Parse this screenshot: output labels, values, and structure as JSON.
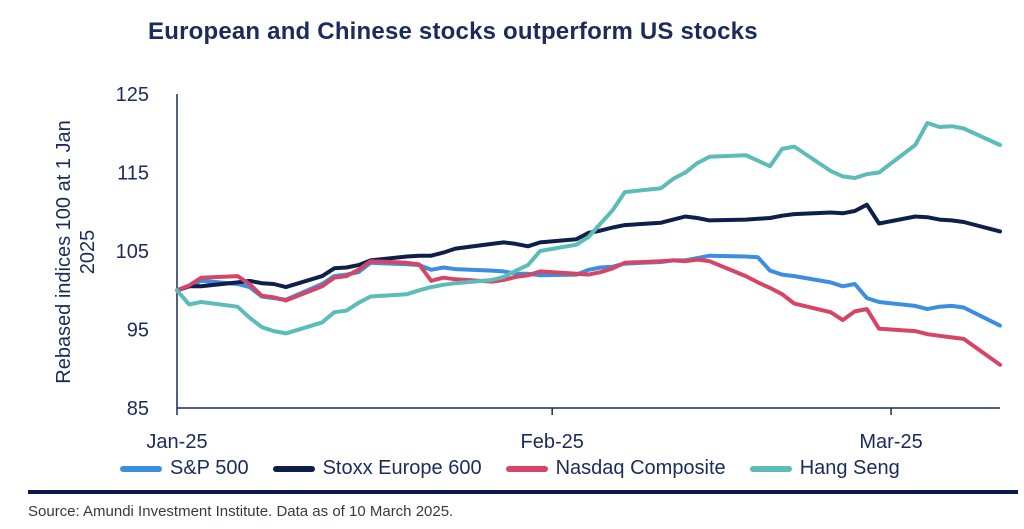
{
  "chart_data": {
    "type": "line",
    "title": "European and Chinese stocks outperform US stocks",
    "ylabel": "Rebased indices 100 at 1 Jan 2025",
    "ylabel_lines": [
      "Rebased indices 100 at 1 Jan",
      "2025"
    ],
    "ylim": [
      85,
      125
    ],
    "yticks": [
      125,
      115,
      105,
      95,
      85
    ],
    "xticks": [
      {
        "label": "Jan-25",
        "date": "2025-01-01"
      },
      {
        "label": "Feb-25",
        "date": "2025-02-01"
      },
      {
        "label": "Mar-25",
        "date": "2025-03-01"
      }
    ],
    "xlim": [
      "2025-01-01",
      "2025-03-10"
    ],
    "grid": false,
    "legend_position": "bottom",
    "dates": [
      "2025-01-01",
      "2025-01-02",
      "2025-01-03",
      "2025-01-06",
      "2025-01-07",
      "2025-01-08",
      "2025-01-09",
      "2025-01-10",
      "2025-01-13",
      "2025-01-14",
      "2025-01-15",
      "2025-01-16",
      "2025-01-17",
      "2025-01-20",
      "2025-01-21",
      "2025-01-22",
      "2025-01-23",
      "2025-01-24",
      "2025-01-27",
      "2025-01-28",
      "2025-01-29",
      "2025-01-30",
      "2025-01-31",
      "2025-02-03",
      "2025-02-04",
      "2025-02-05",
      "2025-02-06",
      "2025-02-07",
      "2025-02-10",
      "2025-02-11",
      "2025-02-12",
      "2025-02-13",
      "2025-02-14",
      "2025-02-17",
      "2025-02-18",
      "2025-02-19",
      "2025-02-20",
      "2025-02-21",
      "2025-02-24",
      "2025-02-25",
      "2025-02-26",
      "2025-02-27",
      "2025-02-28",
      "2025-03-03",
      "2025-03-04",
      "2025-03-05",
      "2025-03-06",
      "2025-03-07",
      "2025-03-10"
    ],
    "series": [
      {
        "name": "S&P 500",
        "color": "#3b8ee0",
        "values": [
          100,
          100.5,
          101.2,
          100.8,
          100.4,
          99.2,
          99.0,
          98.8,
          100.8,
          101.8,
          102.0,
          102.3,
          103.5,
          103.3,
          103.2,
          102.6,
          102.9,
          102.7,
          102.5,
          102.4,
          102.1,
          102.1,
          101.9,
          102.0,
          102.6,
          102.9,
          103.0,
          103.4,
          103.6,
          103.8,
          103.8,
          104.1,
          104.4,
          104.3,
          104.2,
          102.5,
          102.0,
          101.8,
          101.0,
          100.5,
          100.8,
          99.0,
          98.5,
          98.0,
          97.6,
          97.9,
          98.0,
          97.8,
          95.5
        ]
      },
      {
        "name": "Stoxx Europe 600",
        "color": "#0d1f4a",
        "values": [
          100,
          100.5,
          100.5,
          101.0,
          101.2,
          100.9,
          100.8,
          100.4,
          101.8,
          102.8,
          102.9,
          103.2,
          103.8,
          104.3,
          104.4,
          104.4,
          104.8,
          105.3,
          105.9,
          106.1,
          105.9,
          105.6,
          106.1,
          106.5,
          107.3,
          107.6,
          108.0,
          108.3,
          108.6,
          109.0,
          109.4,
          109.2,
          108.9,
          109.0,
          109.1,
          109.2,
          109.5,
          109.7,
          109.9,
          109.8,
          110.1,
          110.9,
          108.5,
          109.4,
          109.3,
          109.0,
          108.9,
          108.7,
          107.5
        ]
      },
      {
        "name": "Nasdaq Composite",
        "color": "#d64565",
        "values": [
          100,
          100.6,
          101.6,
          101.8,
          100.8,
          99.3,
          99.1,
          98.7,
          100.5,
          101.6,
          101.8,
          102.6,
          103.7,
          103.5,
          103.3,
          101.2,
          101.6,
          101.4,
          101.1,
          101.3,
          101.7,
          101.9,
          102.4,
          102.1,
          102.0,
          102.3,
          102.8,
          103.5,
          103.7,
          103.8,
          103.7,
          103.9,
          103.7,
          101.8,
          101.0,
          100.3,
          99.5,
          98.3,
          97.2,
          96.2,
          97.3,
          97.6,
          95.1,
          94.8,
          94.4,
          94.2,
          94.0,
          93.8,
          90.5
        ]
      },
      {
        "name": "Hang Seng",
        "color": "#5bbcb8",
        "values": [
          100,
          98.2,
          98.5,
          97.9,
          96.5,
          95.3,
          94.8,
          94.5,
          95.9,
          97.2,
          97.4,
          98.4,
          99.2,
          99.5,
          100.0,
          100.4,
          100.7,
          100.9,
          101.3,
          101.7,
          102.5,
          103.2,
          105.0,
          105.8,
          106.8,
          108.5,
          110.2,
          112.5,
          113.0,
          114.2,
          115.0,
          116.2,
          117.0,
          117.2,
          116.5,
          115.8,
          118.0,
          118.3,
          115.2,
          114.5,
          114.3,
          114.8,
          115.0,
          118.5,
          121.3,
          120.8,
          120.9,
          120.6,
          118.5
        ]
      }
    ]
  },
  "source": "Source: Amundi Investment Institute. Data as of 10 March 2025."
}
